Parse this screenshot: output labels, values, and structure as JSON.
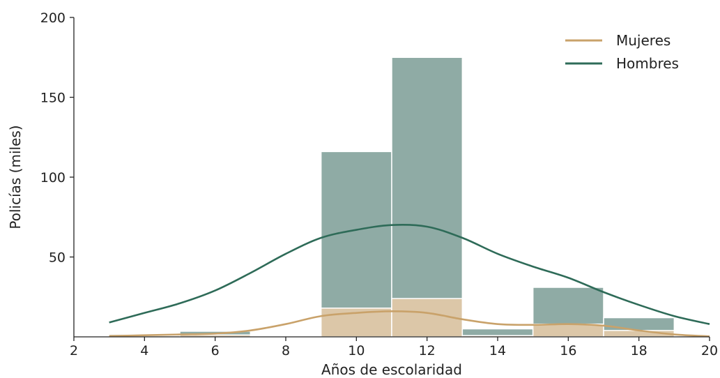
{
  "chart_data": {
    "type": "histogram",
    "xlabel": "Años de escolaridad",
    "ylabel": "Policías (miles)",
    "xlim": [
      2,
      20
    ],
    "ylim": [
      0,
      200
    ],
    "xticks": [
      "2",
      "4",
      "6",
      "8",
      "10",
      "12",
      "14",
      "16",
      "18",
      "20"
    ],
    "yticks": [
      "50",
      "100",
      "150",
      "200"
    ],
    "grid": false,
    "legend_position": "top-right",
    "bins": [
      [
        3,
        5
      ],
      [
        5,
        7
      ],
      [
        7,
        9
      ],
      [
        9,
        11
      ],
      [
        11,
        13
      ],
      [
        13,
        15
      ],
      [
        15,
        17
      ],
      [
        17,
        19
      ]
    ],
    "series": [
      {
        "name": "Hombres",
        "color": "#2e6b58",
        "bar_color": "#8faba5",
        "values": [
          1.5,
          3.5,
          0,
          116,
          175,
          5,
          31,
          12
        ],
        "kde": {
          "x": [
            3,
            4,
            5,
            6,
            7,
            8,
            9,
            10,
            11,
            12,
            13,
            14,
            15,
            16,
            17,
            18,
            19,
            20
          ],
          "y": [
            9,
            15,
            21,
            29,
            40,
            52,
            62,
            67,
            70,
            69,
            62,
            52,
            44,
            37,
            28,
            20,
            13,
            8
          ]
        }
      },
      {
        "name": "Mujeres",
        "color": "#c9a26a",
        "bar_color": "#dcc7a8",
        "values": [
          0.8,
          1.2,
          0,
          18,
          24,
          0.8,
          8,
          4
        ],
        "kde": {
          "x": [
            3,
            4,
            5,
            6,
            7,
            8,
            9,
            10,
            11,
            12,
            13,
            14,
            15,
            16,
            17,
            18,
            19,
            20
          ],
          "y": [
            0.5,
            1,
            1.5,
            2,
            4,
            8,
            13,
            15,
            16,
            15,
            11,
            8,
            7.5,
            8,
            7,
            4,
            1.5,
            0.3
          ]
        }
      }
    ]
  }
}
